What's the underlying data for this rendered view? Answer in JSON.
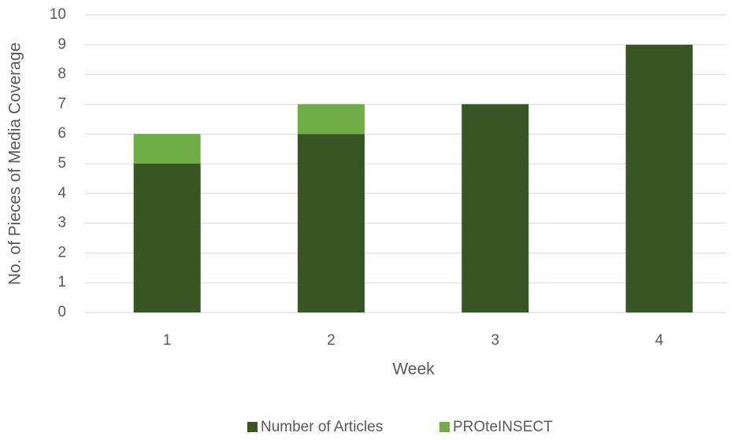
{
  "chart_data": {
    "type": "stacked_bar",
    "categories": [
      "1",
      "2",
      "3",
      "4"
    ],
    "series": [
      {
        "name": "Number of Articles",
        "color": "#375623",
        "values": [
          5,
          6,
          7,
          9
        ]
      },
      {
        "name": "PROteINSECT",
        "color": "#70ad47",
        "values": [
          1,
          1,
          0,
          0
        ]
      }
    ],
    "xlabel": "Week",
    "ylabel": "No. of Pieces of Media Coverage",
    "ylim": [
      0,
      10
    ],
    "yticks": [
      0,
      1,
      2,
      3,
      4,
      5,
      6,
      7,
      8,
      9,
      10
    ],
    "grid": true,
    "legend": "bottom"
  }
}
